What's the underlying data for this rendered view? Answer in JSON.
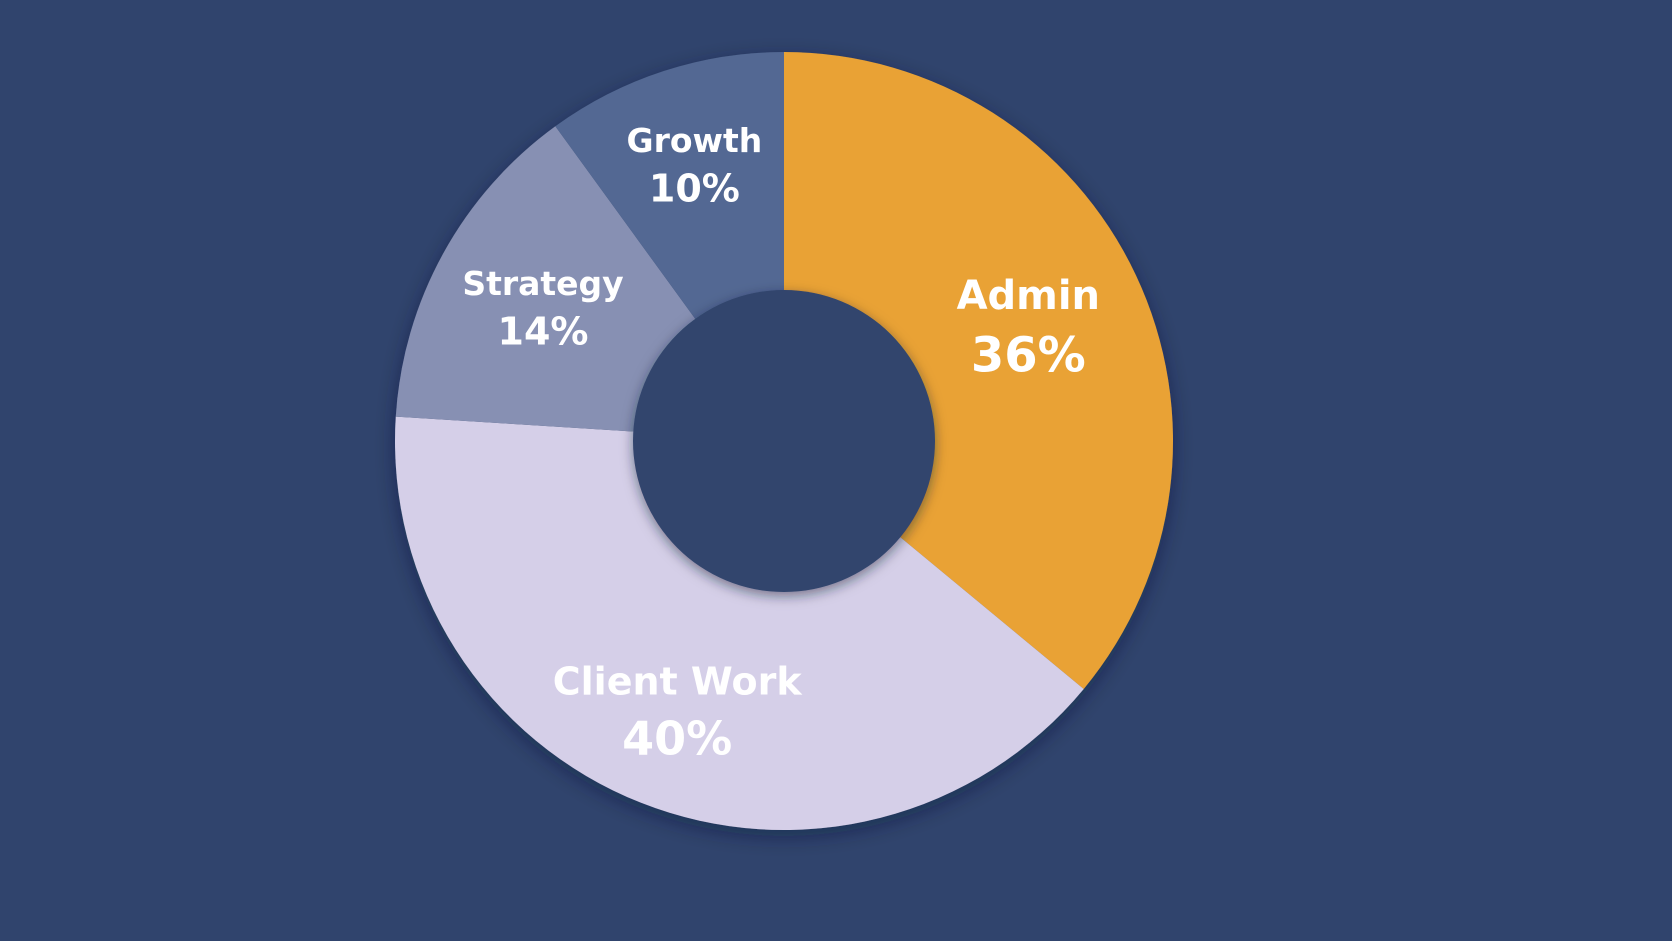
{
  "chart_data": {
    "type": "pie",
    "style": "donut",
    "start_angle_deg": 0,
    "direction": "clockwise",
    "legend": "none",
    "slices": [
      {
        "label": "Admin",
        "value": 36,
        "value_label": "36%",
        "color": "#e9a236"
      },
      {
        "label": "Client Work",
        "value": 40,
        "value_label": "40%",
        "color": "#d5cfe8"
      },
      {
        "label": "Strategy",
        "value": 14,
        "value_label": "14%",
        "color": "#8790b3"
      },
      {
        "label": "Growth",
        "value": 10,
        "value_label": "10%",
        "color": "#526893"
      }
    ]
  },
  "colors": {
    "background": "#30446d",
    "hole": "#30446d",
    "text": "#ffffff"
  }
}
